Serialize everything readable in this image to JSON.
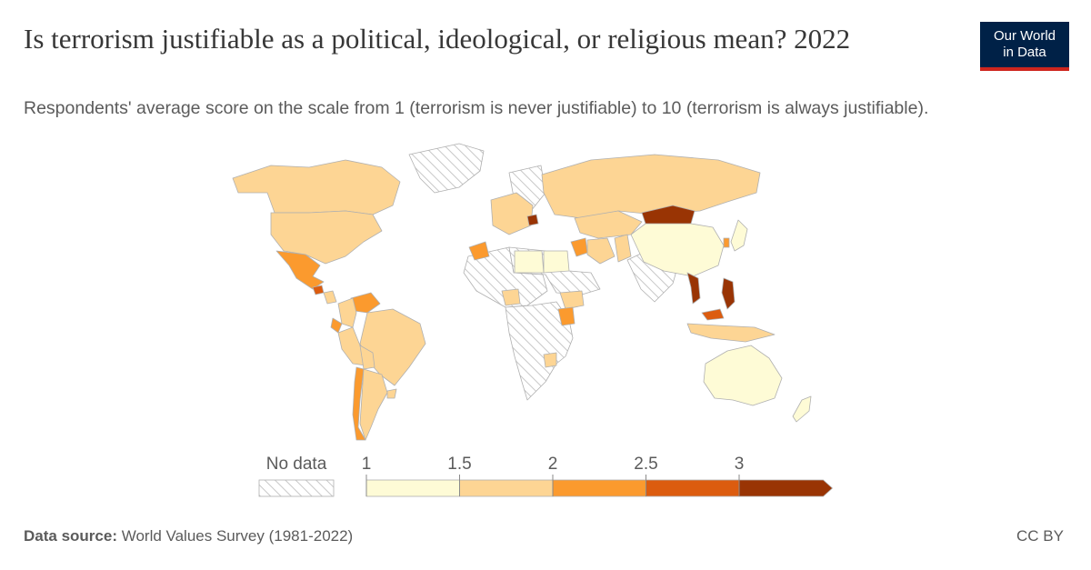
{
  "header": {
    "title": "Is terrorism justifiable as a political, ideological, or religious mean? 2022",
    "subtitle": "Respondents' average score on the scale from 1 (terrorism is never justifiable) to 10 (terrorism is always justifiable)."
  },
  "logo": {
    "line1": "Our World",
    "line2": "in Data",
    "bg_color": "#002147",
    "accent_color": "#ce261e"
  },
  "legend": {
    "no_data_label": "No data",
    "bins": [
      {
        "from": "1",
        "to": "1.5",
        "color": "#fefbd6"
      },
      {
        "from": "1.5",
        "to": "2",
        "color": "#fdd594"
      },
      {
        "from": "2",
        "to": "2.5",
        "color": "#fb9a2e"
      },
      {
        "from": "2.5",
        "to": "3",
        "color": "#dc5c0f"
      },
      {
        "from": "3",
        "to": "",
        "color": "#993404"
      }
    ],
    "ticks": [
      "1",
      "1.5",
      "2",
      "2.5",
      "3"
    ]
  },
  "regions": [
    {
      "name": "Canada",
      "color": "#fdd594"
    },
    {
      "name": "United States",
      "color": "#fdd594"
    },
    {
      "name": "Mexico",
      "color": "#fb9a2e"
    },
    {
      "name": "Guatemala",
      "color": "#dc5c0f"
    },
    {
      "name": "Nicaragua",
      "color": "#fdd594"
    },
    {
      "name": "Colombia",
      "color": "#fdd594"
    },
    {
      "name": "Venezuela",
      "color": "#fb9a2e"
    },
    {
      "name": "Ecuador",
      "color": "#fb9a2e"
    },
    {
      "name": "Peru",
      "color": "#fdd594"
    },
    {
      "name": "Brazil",
      "color": "#fdd594"
    },
    {
      "name": "Bolivia",
      "color": "#fdd594"
    },
    {
      "name": "Chile",
      "color": "#fb9a2e"
    },
    {
      "name": "Argentina",
      "color": "#fdd594"
    },
    {
      "name": "Uruguay",
      "color": "#fdd594"
    },
    {
      "name": "Greenland",
      "color": "no-data"
    },
    {
      "name": "Russia",
      "color": "#fdd594"
    },
    {
      "name": "Kazakhstan",
      "color": "#fdd594"
    },
    {
      "name": "Mongolia",
      "color": "#993404"
    },
    {
      "name": "China",
      "color": "#fefbd6"
    },
    {
      "name": "Japan",
      "color": "#fefbd6"
    },
    {
      "name": "South Korea",
      "color": "#fb9a2e"
    },
    {
      "name": "Iran",
      "color": "#fdd594"
    },
    {
      "name": "Iraq",
      "color": "#fb9a2e"
    },
    {
      "name": "Pakistan",
      "color": "#fdd594"
    },
    {
      "name": "Libya",
      "color": "#fefbd6"
    },
    {
      "name": "Egypt",
      "color": "#fefbd6"
    },
    {
      "name": "Morocco",
      "color": "#fb9a2e"
    },
    {
      "name": "Nigeria",
      "color": "#fdd594"
    },
    {
      "name": "Ethiopia",
      "color": "#fdd594"
    },
    {
      "name": "Kenya",
      "color": "#fb9a2e"
    },
    {
      "name": "Zimbabwe",
      "color": "#fdd594"
    },
    {
      "name": "Vietnam",
      "color": "#993404"
    },
    {
      "name": "Philippines",
      "color": "#993404"
    },
    {
      "name": "Malaysia",
      "color": "#dc5c0f"
    },
    {
      "name": "Indonesia",
      "color": "#fdd594"
    },
    {
      "name": "Australia",
      "color": "#fefbd6"
    },
    {
      "name": "New Zealand",
      "color": "#fefbd6"
    },
    {
      "name": "Serbia",
      "color": "#993404"
    }
  ],
  "footer": {
    "source_label": "Data source:",
    "source_text": "World Values Survey (1981-2022)",
    "license": "CC BY"
  }
}
